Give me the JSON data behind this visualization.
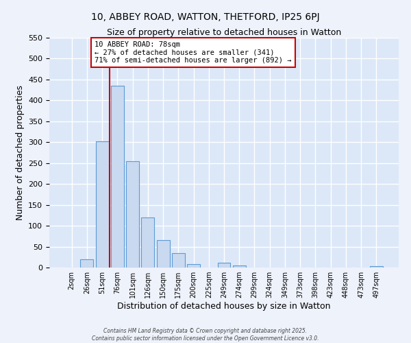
{
  "title": "10, ABBEY ROAD, WATTON, THETFORD, IP25 6PJ",
  "subtitle": "Size of property relative to detached houses in Watton",
  "xlabel": "Distribution of detached houses by size in Watton",
  "ylabel": "Number of detached properties",
  "bar_labels": [
    "2sqm",
    "26sqm",
    "51sqm",
    "76sqm",
    "101sqm",
    "126sqm",
    "150sqm",
    "175sqm",
    "200sqm",
    "225sqm",
    "249sqm",
    "274sqm",
    "299sqm",
    "324sqm",
    "349sqm",
    "373sqm",
    "398sqm",
    "423sqm",
    "448sqm",
    "473sqm",
    "497sqm"
  ],
  "bar_values": [
    0,
    20,
    302,
    435,
    255,
    120,
    65,
    35,
    8,
    0,
    12,
    5,
    0,
    0,
    0,
    0,
    0,
    0,
    0,
    0,
    3
  ],
  "bar_color": "#c9d9f0",
  "bar_edge_color": "#5b9bd5",
  "ylim": [
    0,
    550
  ],
  "yticks": [
    0,
    50,
    100,
    150,
    200,
    250,
    300,
    350,
    400,
    450,
    500,
    550
  ],
  "vline_color": "#cc0000",
  "vline_index": 3,
  "annotation_title": "10 ABBEY ROAD: 78sqm",
  "annotation_line1": "← 27% of detached houses are smaller (341)",
  "annotation_line2": "71% of semi-detached houses are larger (892) →",
  "annotation_box_color": "#ffffff",
  "annotation_box_edge": "#cc0000",
  "background_color": "#eef2fb",
  "footer1": "Contains HM Land Registry data © Crown copyright and database right 2025.",
  "footer2": "Contains public sector information licensed under the Open Government Licence v3.0.",
  "title_fontsize": 10,
  "subtitle_fontsize": 9,
  "grid_color": "#ffffff",
  "plot_bg_color": "#dce8f8"
}
